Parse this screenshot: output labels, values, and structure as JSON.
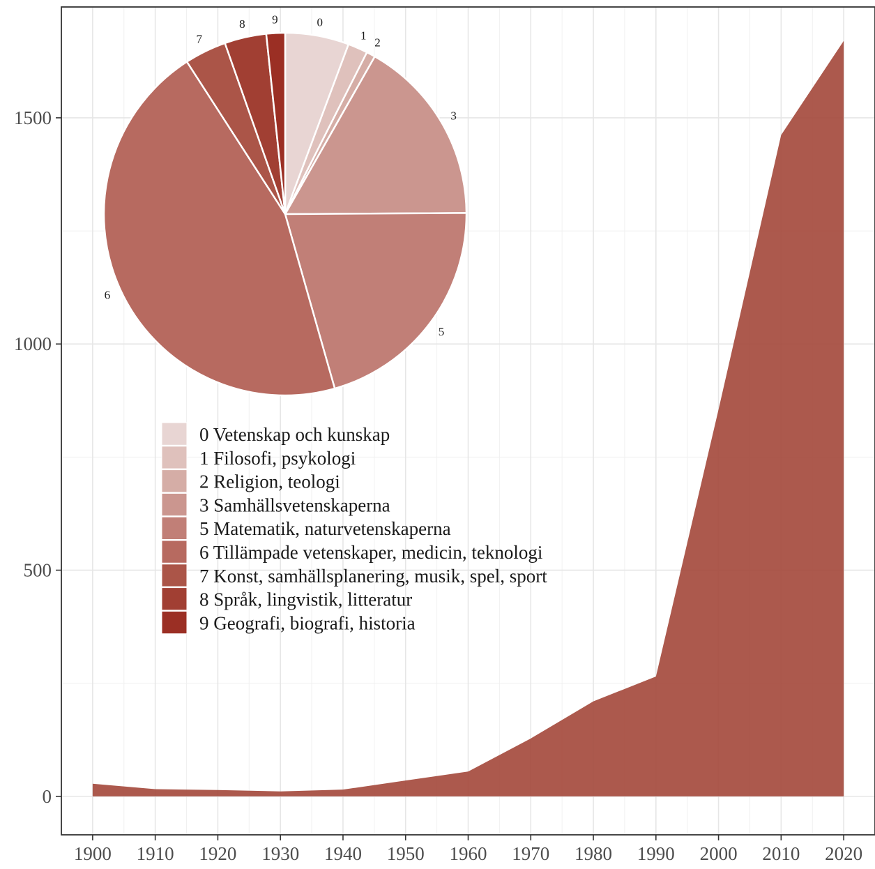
{
  "chart_data": [
    {
      "type": "area",
      "x": [
        1900,
        1910,
        1920,
        1930,
        1940,
        1950,
        1960,
        1970,
        1980,
        1990,
        2000,
        2010,
        2020
      ],
      "series": [
        {
          "values": [
            28,
            16,
            14,
            11,
            15,
            35,
            55,
            128,
            210,
            265,
            855,
            1462,
            1670
          ]
        }
      ],
      "xlim": [
        1895,
        2025
      ],
      "ylim": [
        -85,
        1745
      ],
      "x_ticks": [
        1900,
        1910,
        1920,
        1930,
        1940,
        1950,
        1960,
        1970,
        1980,
        1990,
        2000,
        2010,
        2020
      ],
      "y_ticks": [
        0,
        500,
        1000,
        1500
      ],
      "grid": true,
      "color": "#a3473a"
    },
    {
      "type": "pie",
      "categories": [
        "0",
        "1",
        "2",
        "3",
        "5",
        "6",
        "7",
        "8",
        "9"
      ],
      "values": [
        5.8,
        1.8,
        0.8,
        17.0,
        21.1,
        46.2,
        3.8,
        3.8,
        1.7
      ],
      "colors": [
        "#e8d5d3",
        "#dfc1bc",
        "#d5ada6",
        "#cb968f",
        "#c17f77",
        "#b76a60",
        "#ab5548",
        "#a13f33",
        "#9b2f24"
      ],
      "legend": [
        "0 Vetenskap och kunskap",
        "1 Filosofi, psykologi",
        "2 Religion, teologi",
        "3 Samhällsvetenskaperna",
        "5 Matematik, naturvetenskaperna",
        "6 Tillämpade vetenskaper, medicin, teknologi",
        "7 Konst, samhällsplanering, musik, spel, sport",
        "8 Språk, lingvistik, litteratur",
        "9 Geografi, biografi, historia"
      ],
      "legend_position": "inside-left"
    }
  ]
}
